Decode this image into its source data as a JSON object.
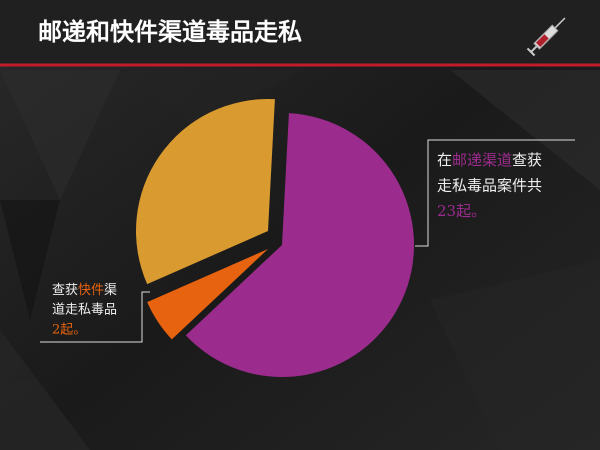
{
  "chart_data": {
    "type": "pie",
    "title": "邮递和快件渠道毒品走私",
    "categories": [
      "邮递渠道",
      "快件",
      null
    ],
    "values": [
      23,
      2,
      12
    ],
    "value_labels": [
      "23起。",
      "2起。",
      null
    ],
    "colors": [
      "#9c2b8e",
      "#e8630f",
      "#d99b2f"
    ],
    "annotations": [
      {
        "before": "在",
        "after": "查获",
        "line2": "走私毒品案件共"
      },
      {
        "before": "查获",
        "after": "渠",
        "line2": "道走私毒品"
      }
    ]
  }
}
